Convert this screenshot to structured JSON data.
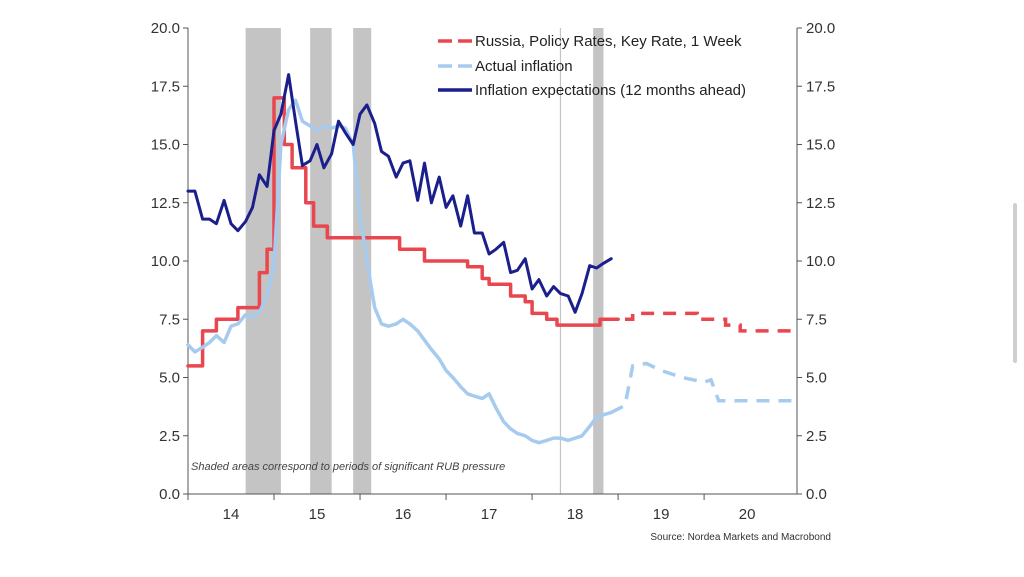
{
  "chart_data": {
    "type": "line",
    "title": "",
    "xlabel": "",
    "ylabel": "",
    "xlim": [
      2013.5,
      2020.58
    ],
    "ylim": [
      0,
      20
    ],
    "y_ticks": [
      "0.0",
      "2.5",
      "5.0",
      "7.5",
      "10.0",
      "12.5",
      "15.0",
      "17.5",
      "20.0"
    ],
    "y_tick_values": [
      0,
      2.5,
      5,
      7.5,
      10,
      12.5,
      15,
      17.5,
      20
    ],
    "x_ticks": [
      "14",
      "15",
      "16",
      "17",
      "18",
      "19",
      "20"
    ],
    "x_tick_values": [
      2014,
      2015,
      2016,
      2017,
      2018,
      2019,
      2020
    ],
    "legend_position": "top-right",
    "grid": false,
    "shaded_periods": [
      [
        2014.17,
        2014.58
      ],
      [
        2014.92,
        2015.17
      ],
      [
        2015.42,
        2015.63
      ],
      [
        2018.21,
        2018.33
      ]
    ],
    "vertical_line_x": 2017.83,
    "note": "Shaded areas correspond to periods of significant RUB pressure",
    "source": "Source: Nordea Markets and Macrobond",
    "series": [
      {
        "name": "Russia, Policy Rates, Key Rate, 1 Week",
        "color": "#e8474f",
        "style": "solid-then-dashed",
        "points": [
          [
            2013.5,
            5.5
          ],
          [
            2013.67,
            5.5
          ],
          [
            2013.67,
            7.0
          ],
          [
            2013.83,
            7.0
          ],
          [
            2013.83,
            7.5
          ],
          [
            2014.08,
            7.5
          ],
          [
            2014.08,
            8.0
          ],
          [
            2014.33,
            8.0
          ],
          [
            2014.33,
            9.5
          ],
          [
            2014.42,
            9.5
          ],
          [
            2014.42,
            10.5
          ],
          [
            2014.5,
            10.5
          ],
          [
            2014.5,
            17.0
          ],
          [
            2014.62,
            17.0
          ],
          [
            2014.62,
            15.0
          ],
          [
            2014.71,
            15.0
          ],
          [
            2014.71,
            14.0
          ],
          [
            2014.87,
            14.0
          ],
          [
            2014.87,
            12.5
          ],
          [
            2014.96,
            12.5
          ],
          [
            2014.96,
            11.5
          ],
          [
            2015.12,
            11.5
          ],
          [
            2015.12,
            11.0
          ],
          [
            2015.96,
            11.0
          ],
          [
            2015.96,
            10.5
          ],
          [
            2016.25,
            10.5
          ],
          [
            2016.25,
            10.0
          ],
          [
            2016.75,
            10.0
          ],
          [
            2016.75,
            9.75
          ],
          [
            2016.92,
            9.75
          ],
          [
            2016.92,
            9.25
          ],
          [
            2017.0,
            9.25
          ],
          [
            2017.0,
            9.0
          ],
          [
            2017.25,
            9.0
          ],
          [
            2017.25,
            8.5
          ],
          [
            2017.42,
            8.5
          ],
          [
            2017.42,
            8.25
          ],
          [
            2017.5,
            8.25
          ],
          [
            2017.5,
            7.75
          ],
          [
            2017.67,
            7.75
          ],
          [
            2017.67,
            7.5
          ],
          [
            2017.79,
            7.5
          ],
          [
            2017.79,
            7.25
          ],
          [
            2018.29,
            7.25
          ],
          [
            2018.29,
            7.5
          ],
          [
            2018.5,
            7.5
          ]
        ],
        "forecast_points": [
          [
            2018.58,
            7.5
          ],
          [
            2018.67,
            7.5
          ],
          [
            2018.67,
            7.75
          ],
          [
            2019.0,
            7.75
          ],
          [
            2019.42,
            7.75
          ],
          [
            2019.42,
            7.5
          ],
          [
            2019.75,
            7.5
          ],
          [
            2019.75,
            7.25
          ],
          [
            2019.92,
            7.25
          ],
          [
            2019.92,
            7.0
          ],
          [
            2020.55,
            7.0
          ]
        ]
      },
      {
        "name": "Actual inflation",
        "color": "#a7cbef",
        "style": "solid-then-dashed",
        "points": [
          [
            2013.5,
            6.4
          ],
          [
            2013.58,
            6.1
          ],
          [
            2013.67,
            6.3
          ],
          [
            2013.75,
            6.5
          ],
          [
            2013.83,
            6.8
          ],
          [
            2013.92,
            6.5
          ],
          [
            2014.0,
            7.2
          ],
          [
            2014.08,
            7.3
          ],
          [
            2014.17,
            7.7
          ],
          [
            2014.25,
            7.6
          ],
          [
            2014.33,
            7.8
          ],
          [
            2014.42,
            8.5
          ],
          [
            2014.5,
            9.8
          ],
          [
            2014.58,
            15.0
          ],
          [
            2014.67,
            16.5
          ],
          [
            2014.75,
            16.9
          ],
          [
            2014.83,
            16.0
          ],
          [
            2014.92,
            15.8
          ],
          [
            2015.0,
            15.6
          ],
          [
            2015.08,
            15.8
          ],
          [
            2015.17,
            15.7
          ],
          [
            2015.25,
            15.8
          ],
          [
            2015.33,
            15.7
          ],
          [
            2015.42,
            15.0
          ],
          [
            2015.5,
            12.0
          ],
          [
            2015.58,
            10.0
          ],
          [
            2015.67,
            8.0
          ],
          [
            2015.75,
            7.3
          ],
          [
            2015.83,
            7.2
          ],
          [
            2015.92,
            7.3
          ],
          [
            2016.0,
            7.5
          ],
          [
            2016.08,
            7.3
          ],
          [
            2016.17,
            7.0
          ],
          [
            2016.25,
            6.6
          ],
          [
            2016.33,
            6.2
          ],
          [
            2016.42,
            5.8
          ],
          [
            2016.5,
            5.3
          ],
          [
            2016.58,
            5.0
          ],
          [
            2016.67,
            4.6
          ],
          [
            2016.75,
            4.3
          ],
          [
            2016.83,
            4.2
          ],
          [
            2016.92,
            4.1
          ],
          [
            2017.0,
            4.3
          ],
          [
            2017.08,
            3.7
          ],
          [
            2017.17,
            3.1
          ],
          [
            2017.25,
            2.8
          ],
          [
            2017.33,
            2.6
          ],
          [
            2017.42,
            2.5
          ],
          [
            2017.5,
            2.3
          ],
          [
            2017.58,
            2.2
          ],
          [
            2017.67,
            2.3
          ],
          [
            2017.75,
            2.4
          ],
          [
            2017.83,
            2.4
          ],
          [
            2017.92,
            2.3
          ],
          [
            2018.0,
            2.4
          ],
          [
            2018.08,
            2.5
          ],
          [
            2018.17,
            2.9
          ],
          [
            2018.25,
            3.3
          ],
          [
            2018.33,
            3.4
          ],
          [
            2018.42,
            3.5
          ]
        ],
        "forecast_points": [
          [
            2018.42,
            3.5
          ],
          [
            2018.58,
            3.8
          ],
          [
            2018.67,
            5.5
          ],
          [
            2018.83,
            5.6
          ],
          [
            2019.0,
            5.3
          ],
          [
            2019.25,
            5.0
          ],
          [
            2019.5,
            4.8
          ],
          [
            2019.58,
            4.9
          ],
          [
            2019.67,
            4.0
          ],
          [
            2020.0,
            4.0
          ],
          [
            2020.55,
            4.0
          ]
        ]
      },
      {
        "name": "Inflation expectations (12 months ahead)",
        "color": "#1a1f8c",
        "style": "solid",
        "points": [
          [
            2013.5,
            13.0
          ],
          [
            2013.58,
            13.0
          ],
          [
            2013.67,
            11.8
          ],
          [
            2013.75,
            11.8
          ],
          [
            2013.83,
            11.6
          ],
          [
            2013.92,
            12.6
          ],
          [
            2014.0,
            11.6
          ],
          [
            2014.08,
            11.3
          ],
          [
            2014.17,
            11.7
          ],
          [
            2014.25,
            12.3
          ],
          [
            2014.33,
            13.7
          ],
          [
            2014.42,
            13.2
          ],
          [
            2014.5,
            15.6
          ],
          [
            2014.58,
            16.3
          ],
          [
            2014.67,
            18.0
          ],
          [
            2014.75,
            16.0
          ],
          [
            2014.83,
            14.1
          ],
          [
            2014.92,
            14.3
          ],
          [
            2015.0,
            15.0
          ],
          [
            2015.08,
            14.0
          ],
          [
            2015.17,
            14.6
          ],
          [
            2015.25,
            16.0
          ],
          [
            2015.33,
            15.5
          ],
          [
            2015.42,
            15.0
          ],
          [
            2015.5,
            16.3
          ],
          [
            2015.58,
            16.7
          ],
          [
            2015.67,
            15.9
          ],
          [
            2015.75,
            14.7
          ],
          [
            2015.83,
            14.5
          ],
          [
            2015.92,
            13.6
          ],
          [
            2016.0,
            14.2
          ],
          [
            2016.08,
            14.3
          ],
          [
            2016.17,
            12.6
          ],
          [
            2016.25,
            14.2
          ],
          [
            2016.33,
            12.5
          ],
          [
            2016.42,
            13.6
          ],
          [
            2016.5,
            12.3
          ],
          [
            2016.58,
            12.8
          ],
          [
            2016.67,
            11.5
          ],
          [
            2016.75,
            12.8
          ],
          [
            2016.83,
            11.2
          ],
          [
            2016.92,
            11.2
          ],
          [
            2017.0,
            10.3
          ],
          [
            2017.08,
            10.5
          ],
          [
            2017.17,
            10.8
          ],
          [
            2017.25,
            9.5
          ],
          [
            2017.33,
            9.6
          ],
          [
            2017.42,
            10.1
          ],
          [
            2017.5,
            8.8
          ],
          [
            2017.58,
            9.2
          ],
          [
            2017.67,
            8.5
          ],
          [
            2017.75,
            8.9
          ],
          [
            2017.83,
            8.6
          ],
          [
            2017.92,
            8.5
          ],
          [
            2018.0,
            7.8
          ],
          [
            2018.08,
            8.6
          ],
          [
            2018.17,
            9.8
          ],
          [
            2018.25,
            9.7
          ],
          [
            2018.33,
            9.9
          ],
          [
            2018.42,
            10.1
          ]
        ]
      }
    ]
  }
}
